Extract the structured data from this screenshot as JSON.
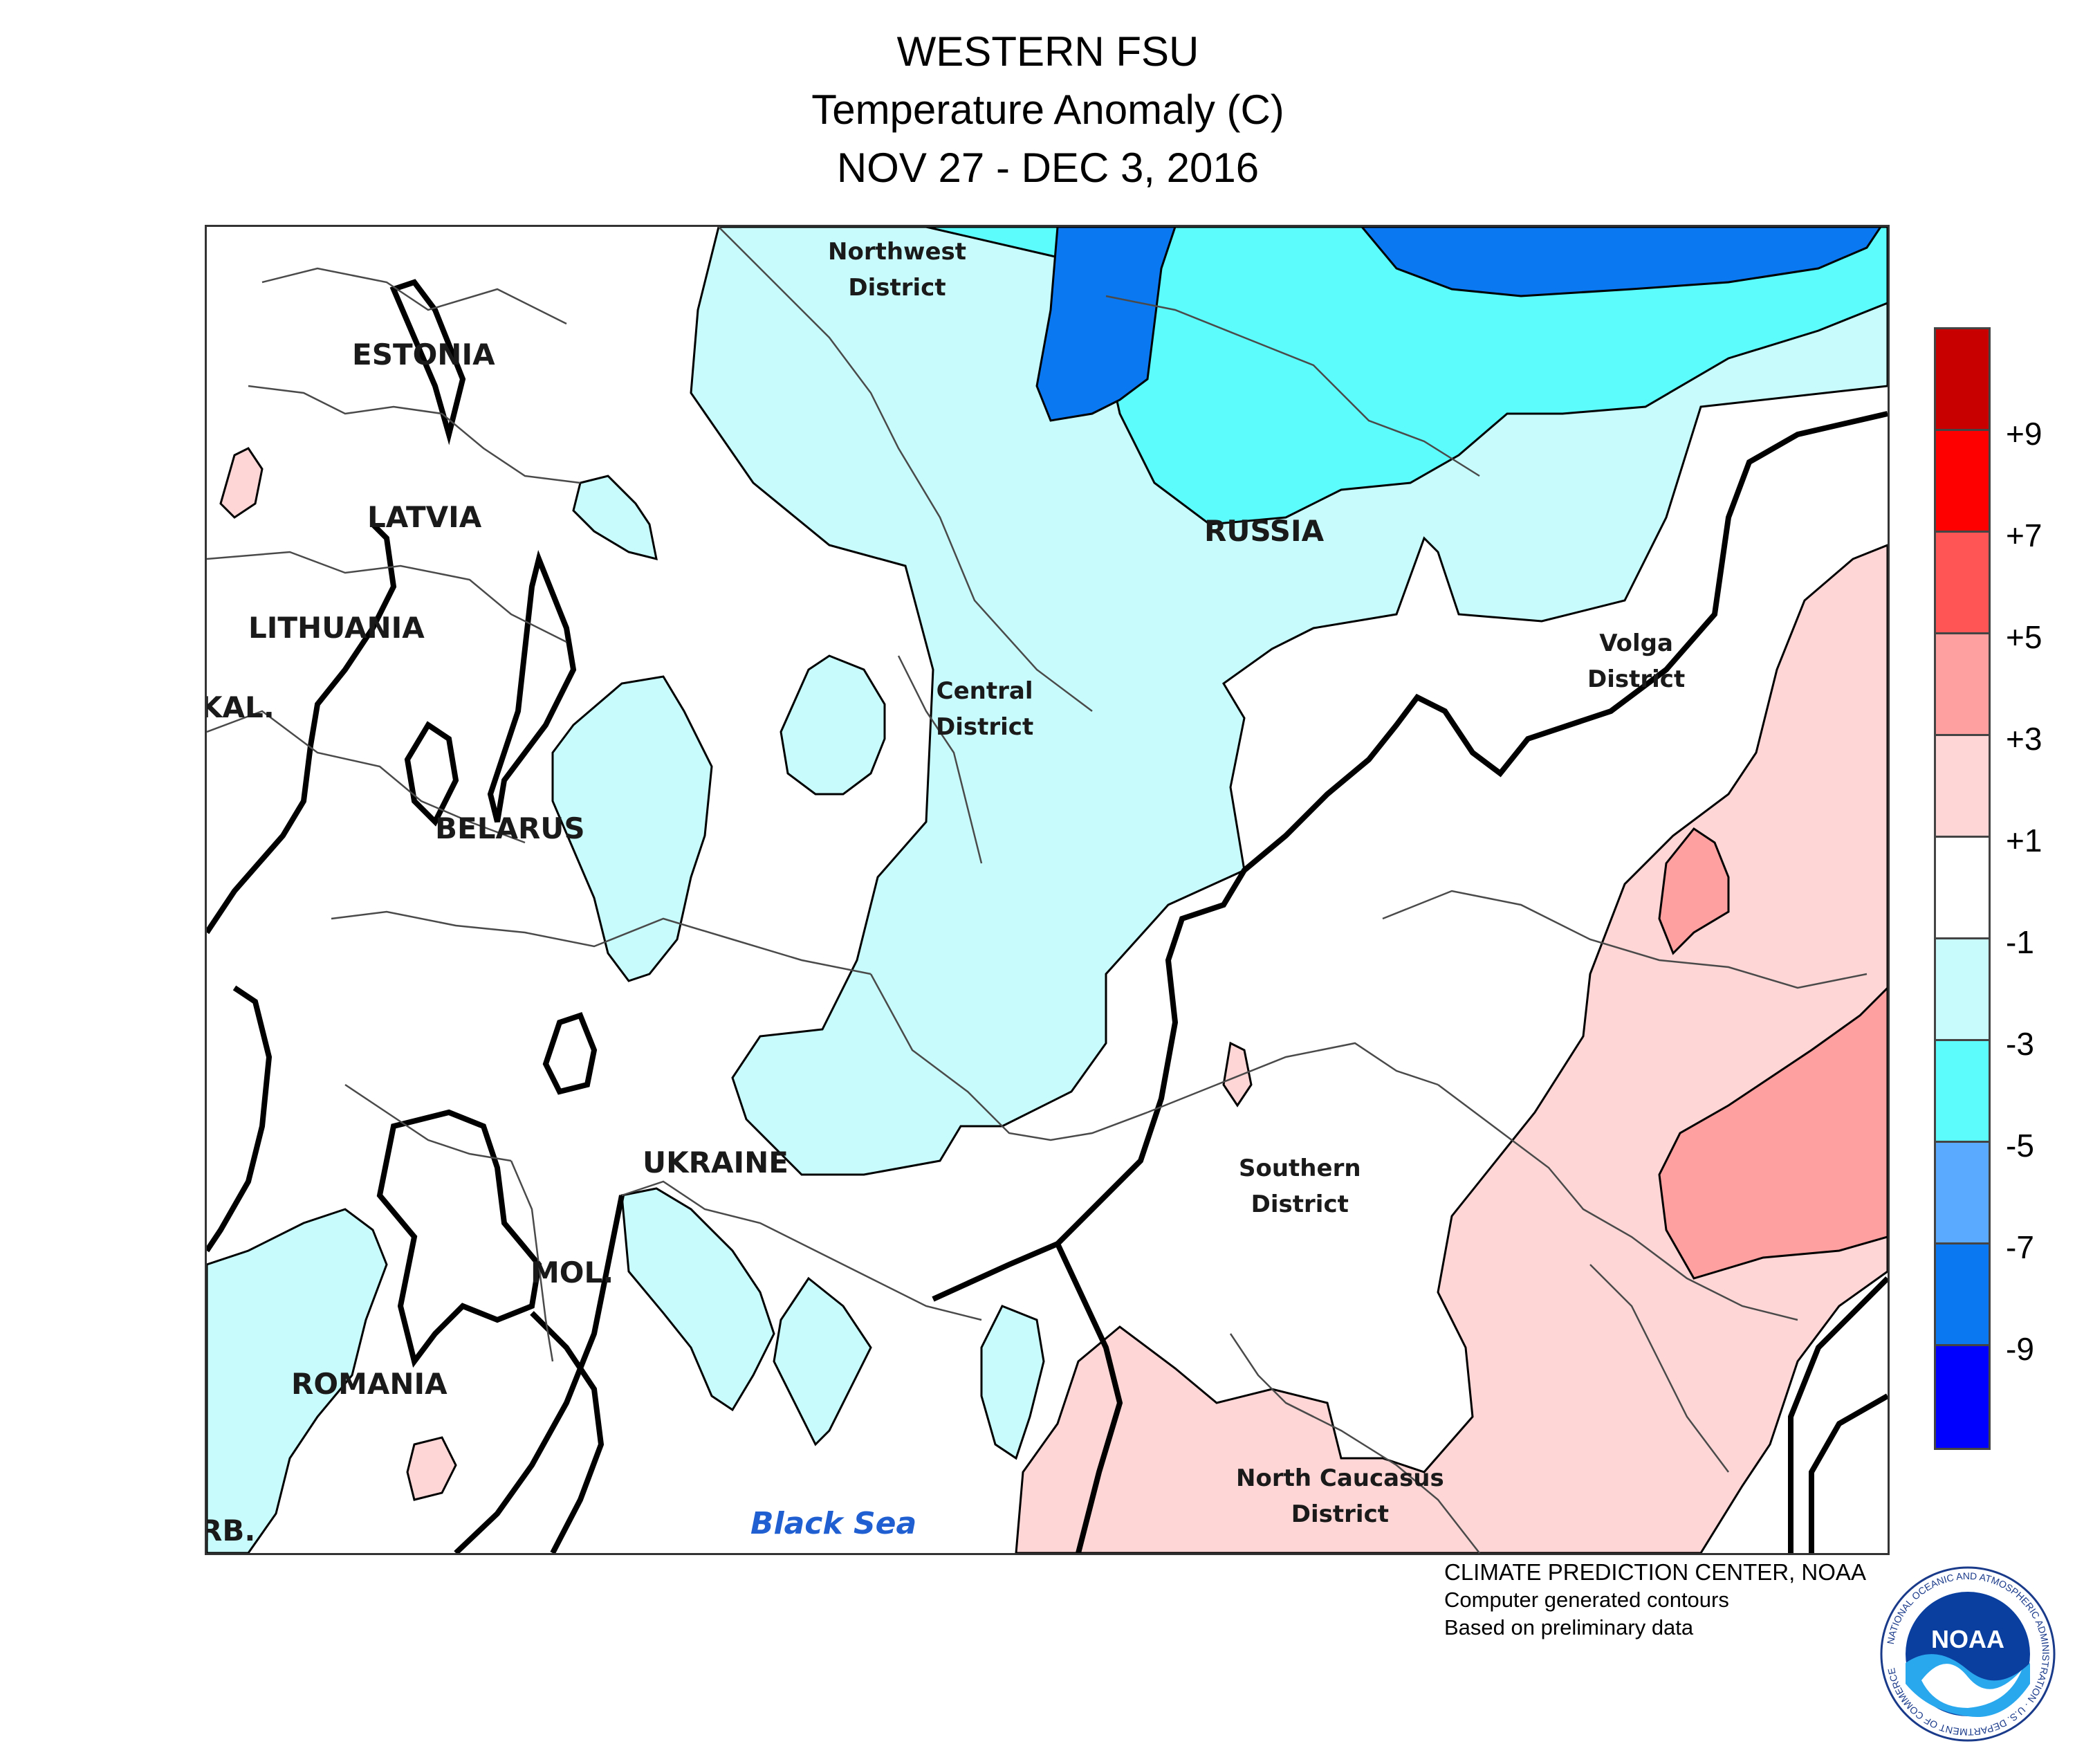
{
  "title": {
    "line1": "WESTERN FSU",
    "line2": "Temperature Anomaly (C)",
    "line3": "NOV 27 - DEC 3, 2016"
  },
  "map": {
    "countries": [
      "ESTONIA",
      "LATVIA",
      "LITHUANIA",
      "KAL.",
      "BELARUS",
      "UKRAINE",
      "MOL.",
      "ROMANIA",
      "RUSSIA",
      "RB."
    ],
    "districts": {
      "northwest": "Northwest\nDistrict",
      "central": "Central\nDistrict",
      "volga": "Volga\nDistrict",
      "southern": "Southern\nDistrict",
      "north_caucasus": "North Caucasus\nDistrict"
    },
    "sea": "Black Sea"
  },
  "legend": {
    "ticks": [
      "+9",
      "+7",
      "+5",
      "+3",
      "+1",
      "-1",
      "-3",
      "-5",
      "-7",
      "-9"
    ],
    "colors": [
      "#c80000",
      "#ff0000",
      "#ff5555",
      "#ffa0a0",
      "#ffd6d6",
      "#ffffff",
      "#c8fcfc",
      "#5cfcfc",
      "#5aaaff",
      "#0a78f0",
      "#0000ff"
    ]
  },
  "colors": {
    "anomaly_m1_m3": "#c8fcfc",
    "anomaly_m3_m5": "#5cfcfc",
    "anomaly_m7_m9": "#0a78f0",
    "anomaly_p1_p3": "#ffd6d6",
    "anomaly_p3_p5": "#ffa0a0",
    "sea_label": "#1f5fd1"
  },
  "credits": {
    "line1": "CLIMATE PREDICTION CENTER, NOAA",
    "line2": "Computer generated contours",
    "line3": "Based on preliminary data"
  },
  "logo": {
    "icon": "noaa-logo-icon",
    "text": "NOAA",
    "ring_text": "NATIONAL OCEANIC AND ATMOSPHERIC ADMINISTRATION · U.S. DEPARTMENT OF COMMERCE"
  }
}
